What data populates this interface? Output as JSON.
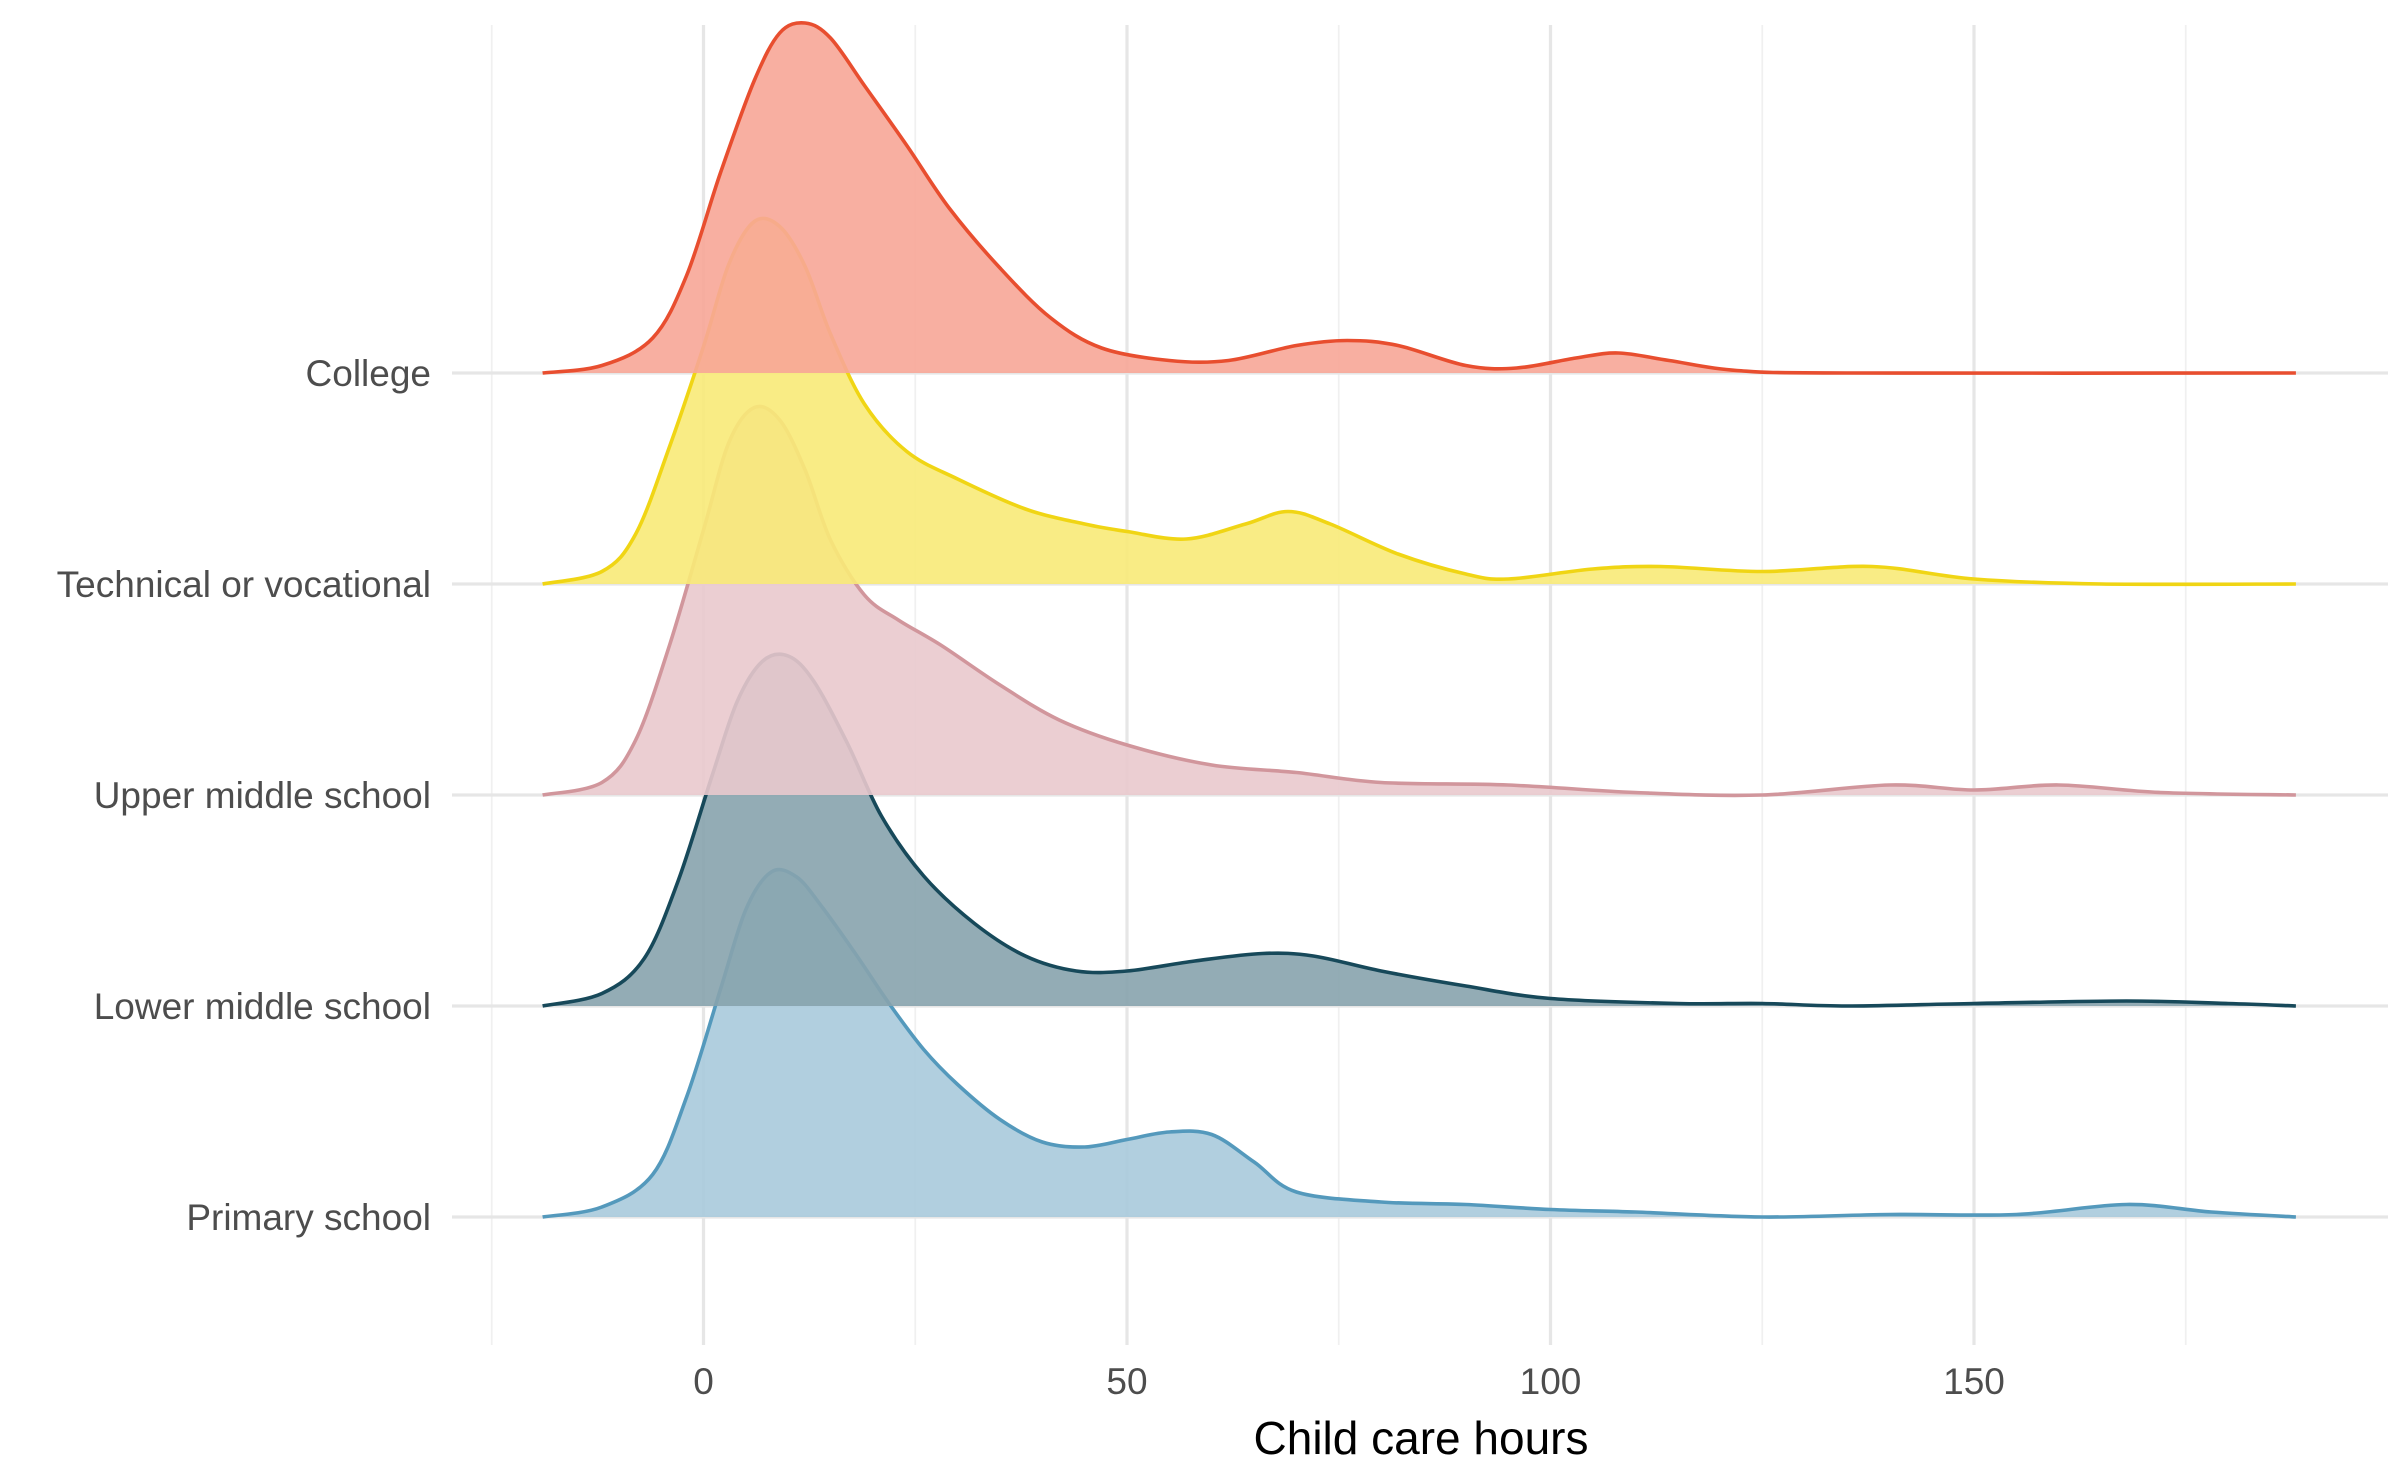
{
  "chart_data": {
    "type": "ridgeline",
    "title": "",
    "xlabel": "Child care hours",
    "ylabel": "",
    "xlim": [
      -25,
      190
    ],
    "x_ticks": [
      0,
      50,
      100,
      150
    ],
    "x_tick_labels": [
      "0",
      "50",
      "100",
      "150"
    ],
    "grid": true,
    "legend": "none",
    "categories": [
      "Primary school",
      "Lower middle school",
      "Upper middle school",
      "Technical or vocational",
      "College"
    ],
    "series": [
      {
        "name": "Primary school",
        "color": "#5499bc",
        "fill": "#a8cadb",
        "points": [
          [
            -19,
            0
          ],
          [
            -12,
            0.04
          ],
          [
            -6,
            0.17
          ],
          [
            -2,
            0.48
          ],
          [
            2,
            0.91
          ],
          [
            5,
            1.23
          ],
          [
            8,
            1.38
          ],
          [
            11,
            1.36
          ],
          [
            14,
            1.24
          ],
          [
            18,
            1.05
          ],
          [
            22,
            0.85
          ],
          [
            26,
            0.67
          ],
          [
            30,
            0.53
          ],
          [
            35,
            0.39
          ],
          [
            40,
            0.3
          ],
          [
            45,
            0.28
          ],
          [
            50,
            0.31
          ],
          [
            55,
            0.34
          ],
          [
            60,
            0.33
          ],
          [
            65,
            0.22
          ],
          [
            70,
            0.1
          ],
          [
            80,
            0.06
          ],
          [
            90,
            0.05
          ],
          [
            100,
            0.03
          ],
          [
            110,
            0.02
          ],
          [
            125,
            0
          ],
          [
            140,
            0.01
          ],
          [
            155,
            0.01
          ],
          [
            168,
            0.05
          ],
          [
            178,
            0.02
          ],
          [
            188,
            0
          ]
        ]
      },
      {
        "name": "Lower middle school",
        "color": "#17495a",
        "fill": "#87a3ad",
        "points": [
          [
            -19,
            0
          ],
          [
            -12,
            0.05
          ],
          [
            -7,
            0.19
          ],
          [
            -3,
            0.5
          ],
          [
            1,
            0.92
          ],
          [
            4,
            1.22
          ],
          [
            7,
            1.38
          ],
          [
            10,
            1.4
          ],
          [
            13,
            1.3
          ],
          [
            17,
            1.05
          ],
          [
            21,
            0.76
          ],
          [
            26,
            0.52
          ],
          [
            32,
            0.33
          ],
          [
            38,
            0.2
          ],
          [
            44,
            0.14
          ],
          [
            50,
            0.14
          ],
          [
            58,
            0.18
          ],
          [
            66,
            0.21
          ],
          [
            72,
            0.2
          ],
          [
            80,
            0.14
          ],
          [
            90,
            0.08
          ],
          [
            100,
            0.03
          ],
          [
            115,
            0.01
          ],
          [
            125,
            0.01
          ],
          [
            135,
            0
          ],
          [
            150,
            0.01
          ],
          [
            168,
            0.02
          ],
          [
            180,
            0.01
          ],
          [
            188,
            0
          ]
        ]
      },
      {
        "name": "Upper middle school",
        "color": "#d1969c",
        "fill": "#e9c9cd",
        "points": [
          [
            -19,
            0
          ],
          [
            -12,
            0.05
          ],
          [
            -8,
            0.22
          ],
          [
            -4,
            0.6
          ],
          [
            0,
            1.06
          ],
          [
            3,
            1.41
          ],
          [
            6,
            1.55
          ],
          [
            9,
            1.5
          ],
          [
            12,
            1.3
          ],
          [
            15,
            1.02
          ],
          [
            19,
            0.8
          ],
          [
            23,
            0.7
          ],
          [
            28,
            0.6
          ],
          [
            35,
            0.44
          ],
          [
            42,
            0.3
          ],
          [
            50,
            0.2
          ],
          [
            60,
            0.12
          ],
          [
            70,
            0.09
          ],
          [
            80,
            0.05
          ],
          [
            95,
            0.04
          ],
          [
            110,
            0.01
          ],
          [
            125,
            0
          ],
          [
            140,
            0.04
          ],
          [
            150,
            0.02
          ],
          [
            160,
            0.04
          ],
          [
            172,
            0.01
          ],
          [
            188,
            0
          ]
        ]
      },
      {
        "name": "Technical or vocational",
        "color": "#f0d514",
        "fill": "#f8ea78",
        "points": [
          [
            -19,
            0
          ],
          [
            -12,
            0.05
          ],
          [
            -8,
            0.2
          ],
          [
            -4,
            0.55
          ],
          [
            0,
            0.95
          ],
          [
            3,
            1.28
          ],
          [
            6,
            1.45
          ],
          [
            9,
            1.43
          ],
          [
            12,
            1.27
          ],
          [
            15,
            1.0
          ],
          [
            19,
            0.72
          ],
          [
            24,
            0.53
          ],
          [
            30,
            0.42
          ],
          [
            38,
            0.3
          ],
          [
            45,
            0.24
          ],
          [
            50,
            0.21
          ],
          [
            57,
            0.18
          ],
          [
            64,
            0.24
          ],
          [
            69,
            0.29
          ],
          [
            74,
            0.24
          ],
          [
            82,
            0.12
          ],
          [
            90,
            0.04
          ],
          [
            95,
            0.02
          ],
          [
            105,
            0.06
          ],
          [
            113,
            0.07
          ],
          [
            125,
            0.05
          ],
          [
            138,
            0.07
          ],
          [
            150,
            0.02
          ],
          [
            165,
            0
          ],
          [
            188,
            0
          ]
        ]
      },
      {
        "name": "College",
        "color": "#e84e2f",
        "fill": "#f7a697",
        "points": [
          [
            -19,
            0
          ],
          [
            -12,
            0.03
          ],
          [
            -6,
            0.14
          ],
          [
            -2,
            0.39
          ],
          [
            2,
            0.8
          ],
          [
            6,
            1.17
          ],
          [
            9,
            1.36
          ],
          [
            12,
            1.4
          ],
          [
            15,
            1.34
          ],
          [
            19,
            1.15
          ],
          [
            24,
            0.91
          ],
          [
            29,
            0.66
          ],
          [
            35,
            0.42
          ],
          [
            41,
            0.22
          ],
          [
            47,
            0.1
          ],
          [
            55,
            0.05
          ],
          [
            62,
            0.05
          ],
          [
            70,
            0.11
          ],
          [
            76,
            0.13
          ],
          [
            82,
            0.11
          ],
          [
            90,
            0.03
          ],
          [
            96,
            0.02
          ],
          [
            103,
            0.06
          ],
          [
            108,
            0.08
          ],
          [
            114,
            0.05
          ],
          [
            122,
            0.01
          ],
          [
            135,
            0
          ],
          [
            188,
            0
          ]
        ]
      }
    ]
  }
}
